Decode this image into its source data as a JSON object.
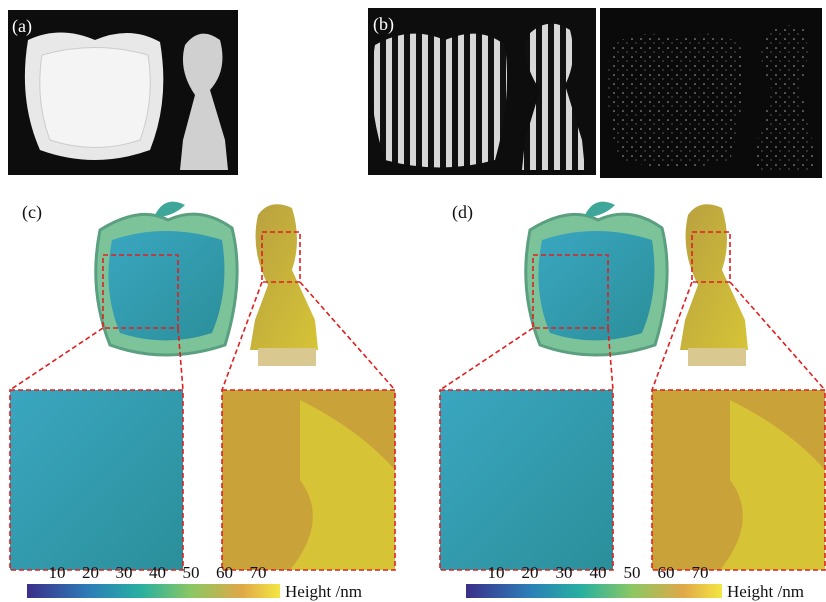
{
  "panels": {
    "a": {
      "label": "(a)"
    },
    "b": {
      "label": "(b)"
    },
    "c": {
      "label": "(c)"
    },
    "d": {
      "label": "(d)"
    }
  },
  "colorbars": [
    {
      "ticks": [
        10,
        20,
        30,
        40,
        50,
        60,
        70
      ],
      "label": "Height /nm"
    },
    {
      "ticks": [
        10,
        20,
        30,
        40,
        50,
        60,
        70
      ],
      "label": "Height /nm"
    }
  ]
}
